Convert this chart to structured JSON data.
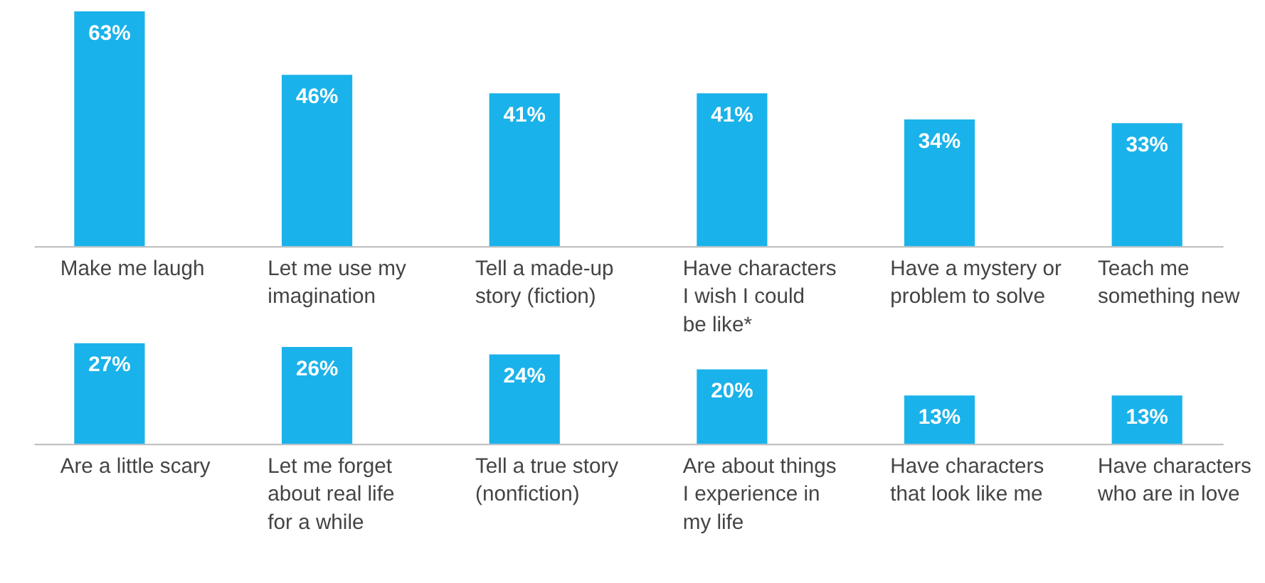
{
  "chart_data": [
    {
      "type": "bar",
      "categories": [
        "Make me laugh",
        "Let me use my\nimagination",
        "Tell a made-up\nstory (fiction)",
        "Have characters\nI wish I could\nbe like*",
        "Have a mystery or\nproblem to solve",
        "Teach me\nsomething new"
      ],
      "values": [
        63,
        46,
        41,
        41,
        34,
        33
      ],
      "color": "#1ab2ea",
      "value_labels": [
        "63%",
        "46%",
        "41%",
        "41%",
        "34%",
        "33%"
      ],
      "tick_labels": "x"
    },
    {
      "type": "bar",
      "categories": [
        "Are a little scary",
        "Let me forget\nabout real life\nfor a while",
        "Tell a true story\n(nonfiction)",
        "Are about things\nI experience in\nmy life",
        "Have characters\nthat look like me",
        "Have characters\nwho are in love"
      ],
      "values": [
        27,
        26,
        24,
        20,
        13,
        13
      ],
      "color": "#1ab2ea",
      "value_labels": [
        "27%",
        "26%",
        "24%",
        "20%",
        "13%",
        "13%"
      ],
      "tick_labels": "x"
    }
  ]
}
